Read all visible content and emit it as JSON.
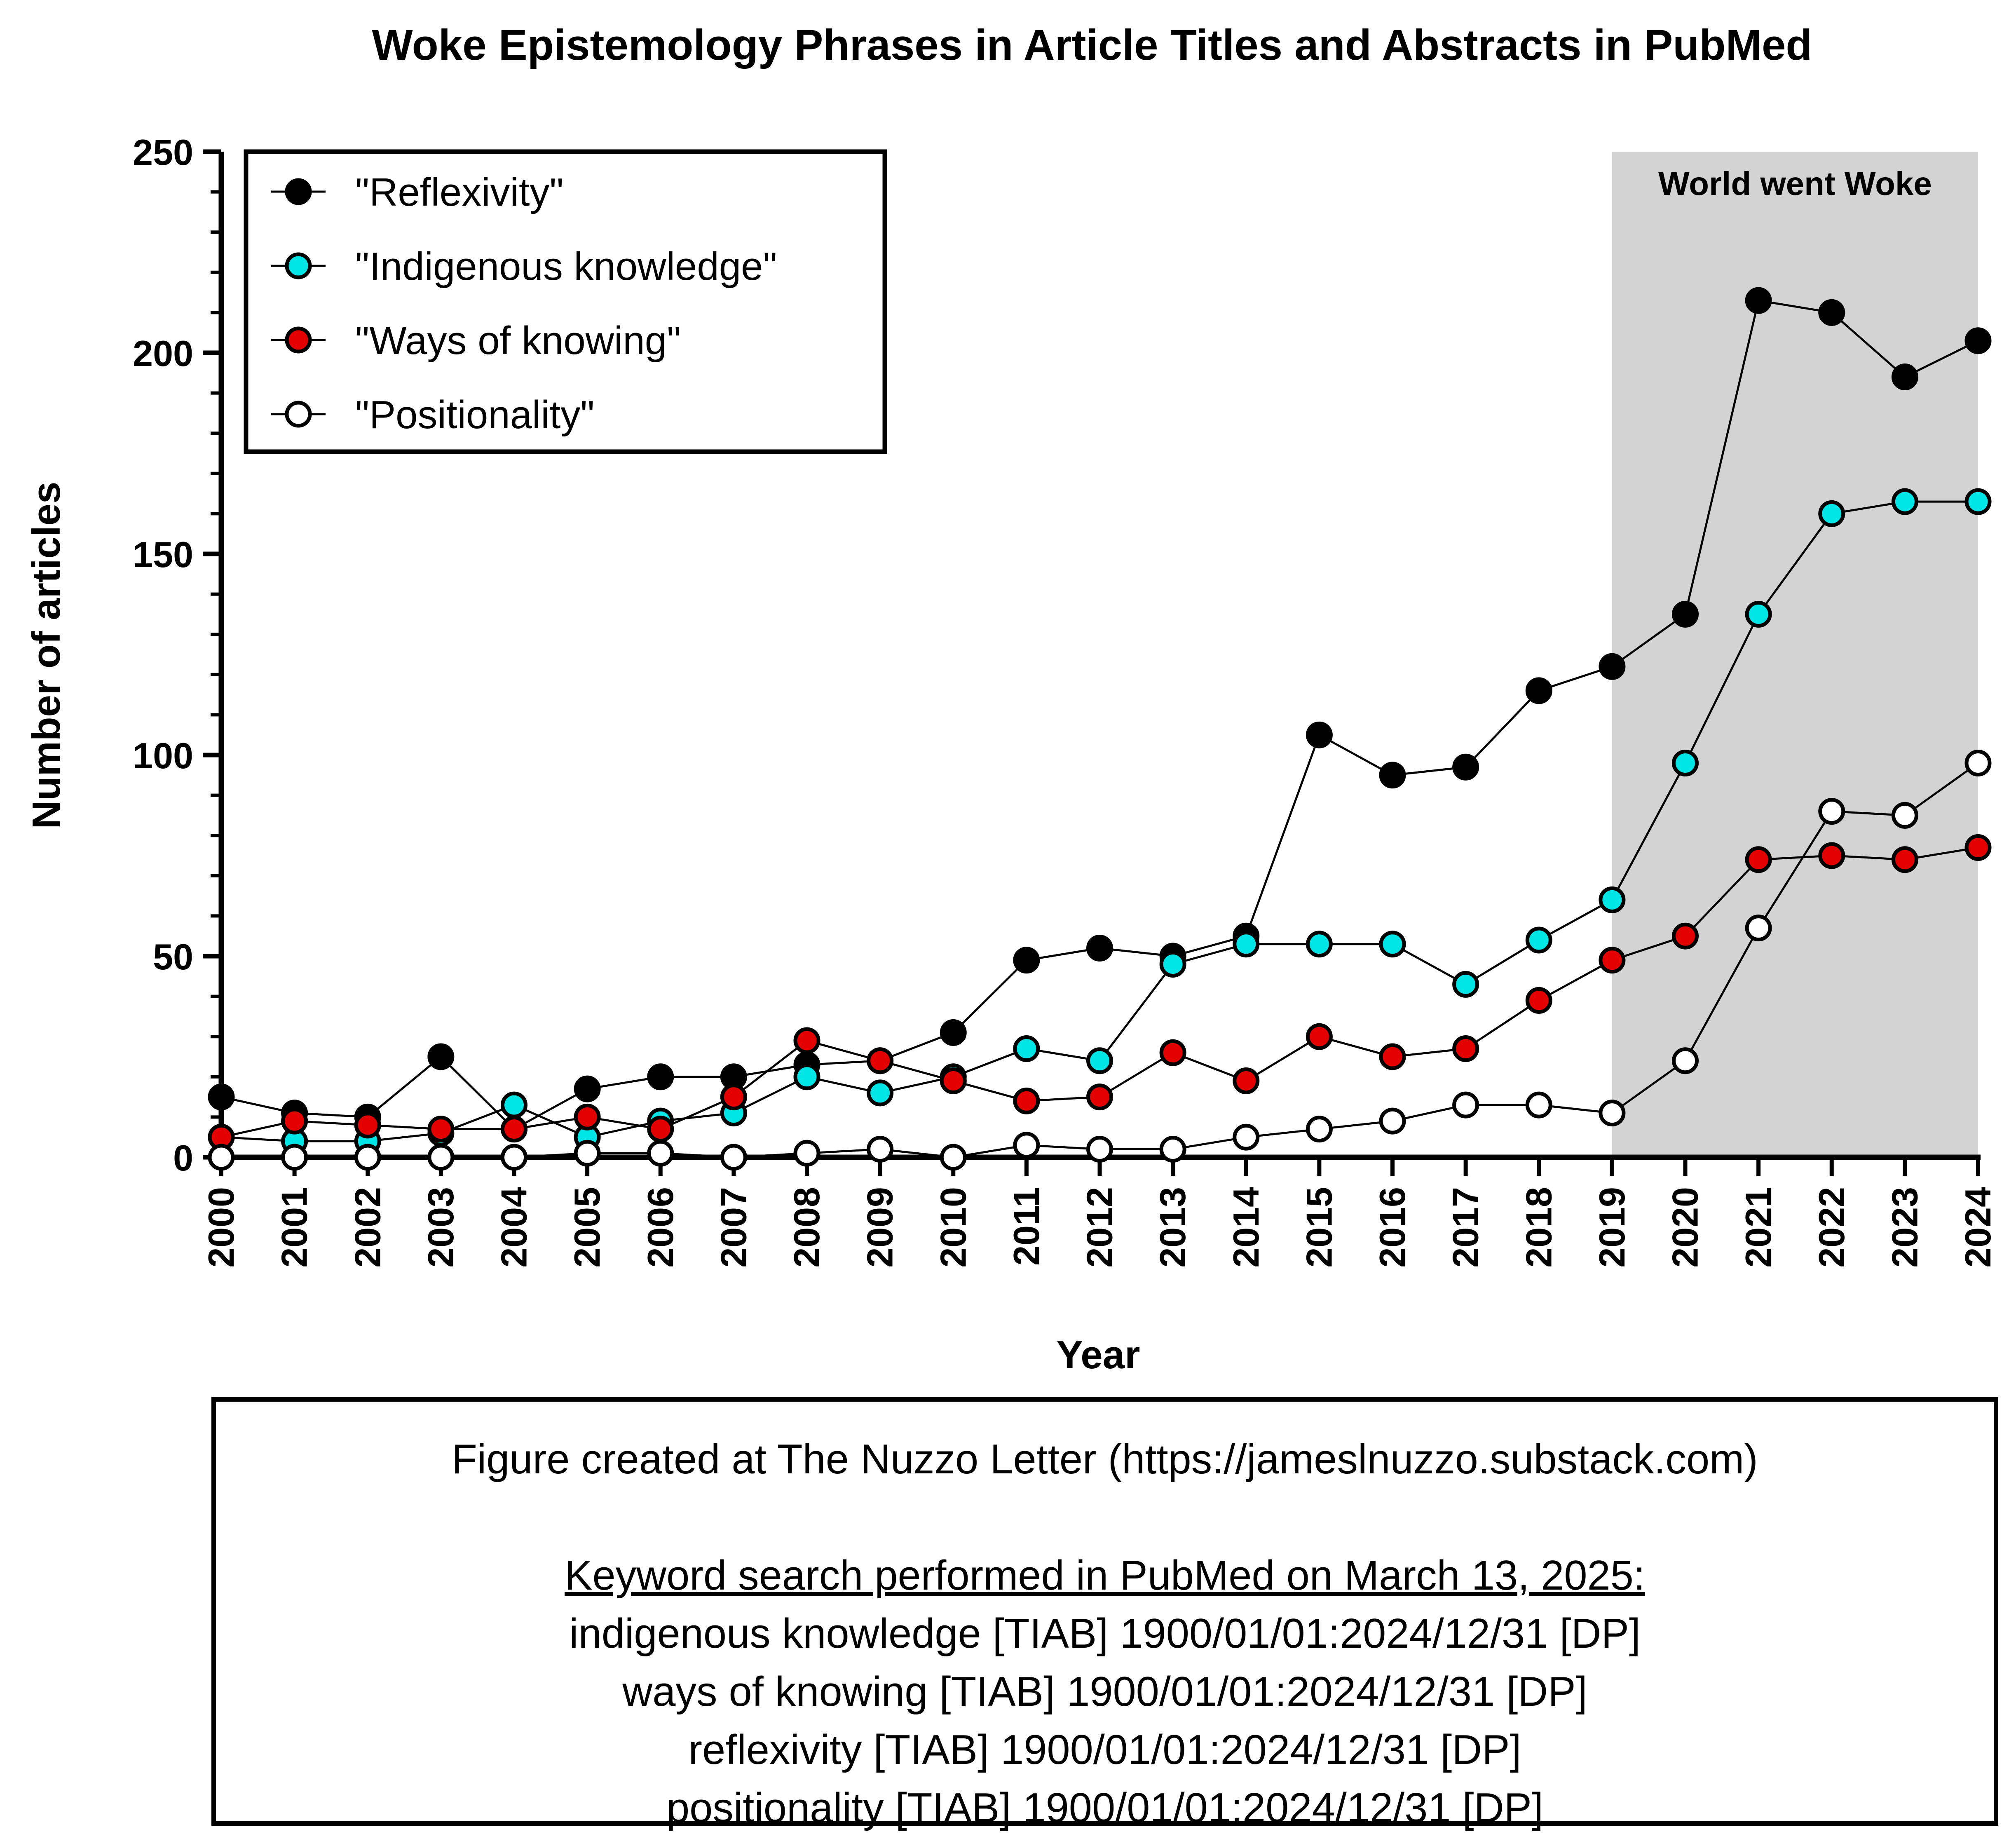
{
  "chart_data": {
    "type": "line",
    "title": "Woke Epistemology Phrases in Article Titles and Abstracts in PubMed",
    "xlabel": "Year",
    "ylabel": "Number of articles",
    "ylim": [
      0,
      250
    ],
    "y_ticks": [
      "0",
      "50",
      "100",
      "150",
      "200",
      "250"
    ],
    "categories": [
      "2000",
      "2001",
      "2002",
      "2003",
      "2004",
      "2005",
      "2006",
      "2007",
      "2008",
      "2009",
      "2010",
      "2011",
      "2012",
      "2013",
      "2014",
      "2015",
      "2016",
      "2017",
      "2018",
      "2019",
      "2020",
      "2021",
      "2022",
      "2023",
      "2024"
    ],
    "legend_position": "top-left",
    "grid": false,
    "shaded_region": {
      "from": "2019",
      "to": "2024",
      "label": "World went Woke",
      "color": "#d3d3d3"
    },
    "series": [
      {
        "name": "\"Reflexivity\"",
        "color": "#000000",
        "values": [
          15,
          11,
          10,
          25,
          7,
          17,
          20,
          20,
          23,
          24,
          31,
          49,
          52,
          50,
          55,
          105,
          95,
          97,
          116,
          122,
          135,
          213,
          210,
          194,
          203
        ]
      },
      {
        "name": "\"Indigenous knowledge\"",
        "color": "#00e5e5",
        "values": [
          5,
          4,
          4,
          6,
          13,
          5,
          9,
          11,
          20,
          16,
          20,
          27,
          24,
          48,
          53,
          53,
          53,
          43,
          54,
          64,
          98,
          135,
          160,
          163,
          163
        ]
      },
      {
        "name": "\"Ways of knowing\"",
        "color": "#e50000",
        "values": [
          5,
          9,
          8,
          7,
          7,
          10,
          7,
          15,
          29,
          24,
          19,
          14,
          15,
          26,
          19,
          30,
          25,
          27,
          39,
          49,
          55,
          74,
          75,
          74,
          77
        ]
      },
      {
        "name": "\"Positionality\"",
        "color": "#ffffff",
        "values": [
          0,
          0,
          0,
          0,
          0,
          1,
          1,
          0,
          1,
          2,
          0,
          3,
          2,
          2,
          5,
          7,
          9,
          13,
          13,
          11,
          24,
          57,
          86,
          85,
          98
        ]
      }
    ]
  },
  "footnote": {
    "credit": "Figure created at The Nuzzo Letter (https://jameslnuzzo.substack.com)",
    "search_heading": "Keyword search performed in PubMed on March 13, 2025:",
    "queries": [
      "indigenous knowledge [TIAB] 1900/01/01:2024/12/31 [DP]",
      "ways of knowing [TIAB] 1900/01/01:2024/12/31 [DP]",
      "reflexivity [TIAB] 1900/01/01:2024/12/31 [DP]",
      "positionality [TIAB] 1900/01/01:2024/12/31 [DP]"
    ]
  }
}
